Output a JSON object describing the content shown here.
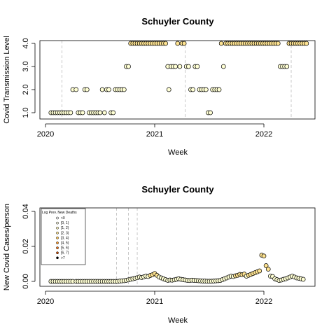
{
  "colors": {
    "fill_low": "#ffffd4",
    "fill_mid": "#fee391",
    "point_stroke": "#000000",
    "vline": "#bbbbbb"
  },
  "chart_data": [
    {
      "type": "scatter",
      "title": "Schuyler County",
      "xlabel": "Week",
      "ylabel": "Covid Transmission Level",
      "xlim": [
        2020.0,
        2022.5
      ],
      "ylim": [
        1.0,
        4.0
      ],
      "xticks": [
        2020,
        2021,
        2022
      ],
      "xtick_labels": [
        "2020",
        "2021",
        "2022"
      ],
      "yticks": [
        1,
        2,
        3,
        4
      ],
      "ytick_labels": [
        "1.0",
        "2.0",
        "3.0",
        "4.0"
      ],
      "grid": false,
      "vlines": [
        2020.15,
        2021.28,
        2022.25
      ],
      "points": [
        [
          2020.05,
          1
        ],
        [
          2020.07,
          1
        ],
        [
          2020.09,
          1
        ],
        [
          2020.11,
          1
        ],
        [
          2020.13,
          1
        ],
        [
          2020.15,
          1
        ],
        [
          2020.17,
          1
        ],
        [
          2020.19,
          1
        ],
        [
          2020.21,
          1
        ],
        [
          2020.23,
          1
        ],
        [
          2020.25,
          2
        ],
        [
          2020.28,
          2
        ],
        [
          2020.3,
          1
        ],
        [
          2020.32,
          1
        ],
        [
          2020.34,
          1
        ],
        [
          2020.36,
          2
        ],
        [
          2020.38,
          2
        ],
        [
          2020.4,
          1
        ],
        [
          2020.42,
          1
        ],
        [
          2020.44,
          1
        ],
        [
          2020.46,
          1
        ],
        [
          2020.48,
          1
        ],
        [
          2020.5,
          1
        ],
        [
          2020.52,
          2
        ],
        [
          2020.54,
          1
        ],
        [
          2020.56,
          2
        ],
        [
          2020.58,
          2
        ],
        [
          2020.6,
          1
        ],
        [
          2020.62,
          1
        ],
        [
          2020.64,
          2
        ],
        [
          2020.66,
          2
        ],
        [
          2020.68,
          2
        ],
        [
          2020.7,
          2
        ],
        [
          2020.72,
          2
        ],
        [
          2020.74,
          3
        ],
        [
          2020.76,
          3
        ],
        [
          2020.78,
          4
        ],
        [
          2020.8,
          4
        ],
        [
          2020.82,
          4
        ],
        [
          2020.84,
          4
        ],
        [
          2020.86,
          4
        ],
        [
          2020.88,
          4
        ],
        [
          2020.9,
          4
        ],
        [
          2020.92,
          4
        ],
        [
          2020.94,
          4
        ],
        [
          2020.96,
          4
        ],
        [
          2020.98,
          4
        ],
        [
          2021.0,
          4
        ],
        [
          2021.02,
          4
        ],
        [
          2021.04,
          4
        ],
        [
          2021.06,
          4
        ],
        [
          2021.08,
          4
        ],
        [
          2021.1,
          4
        ],
        [
          2021.12,
          3
        ],
        [
          2021.13,
          2
        ],
        [
          2021.15,
          3
        ],
        [
          2021.17,
          3
        ],
        [
          2021.19,
          3
        ],
        [
          2021.21,
          4
        ],
        [
          2021.23,
          3
        ],
        [
          2021.25,
          4
        ],
        [
          2021.27,
          4
        ],
        [
          2021.29,
          3
        ],
        [
          2021.31,
          3
        ],
        [
          2021.33,
          2
        ],
        [
          2021.35,
          2
        ],
        [
          2021.37,
          3
        ],
        [
          2021.39,
          3
        ],
        [
          2021.41,
          2
        ],
        [
          2021.43,
          2
        ],
        [
          2021.45,
          2
        ],
        [
          2021.47,
          2
        ],
        [
          2021.49,
          1
        ],
        [
          2021.51,
          1
        ],
        [
          2021.53,
          2
        ],
        [
          2021.55,
          2
        ],
        [
          2021.57,
          2
        ],
        [
          2021.59,
          2
        ],
        [
          2021.61,
          4
        ],
        [
          2021.63,
          3
        ],
        [
          2021.65,
          4
        ],
        [
          2021.67,
          4
        ],
        [
          2021.69,
          4
        ],
        [
          2021.71,
          4
        ],
        [
          2021.73,
          4
        ],
        [
          2021.75,
          4
        ],
        [
          2021.77,
          4
        ],
        [
          2021.79,
          4
        ],
        [
          2021.81,
          4
        ],
        [
          2021.83,
          4
        ],
        [
          2021.85,
          4
        ],
        [
          2021.87,
          4
        ],
        [
          2021.89,
          4
        ],
        [
          2021.91,
          4
        ],
        [
          2021.93,
          4
        ],
        [
          2021.95,
          4
        ],
        [
          2021.97,
          4
        ],
        [
          2021.99,
          4
        ],
        [
          2022.01,
          4
        ],
        [
          2022.03,
          4
        ],
        [
          2022.05,
          4
        ],
        [
          2022.07,
          4
        ],
        [
          2022.09,
          4
        ],
        [
          2022.11,
          4
        ],
        [
          2022.13,
          4
        ],
        [
          2022.15,
          3
        ],
        [
          2022.17,
          3
        ],
        [
          2022.19,
          3
        ],
        [
          2022.21,
          3
        ],
        [
          2022.23,
          4
        ],
        [
          2022.25,
          4
        ],
        [
          2022.27,
          4
        ],
        [
          2022.29,
          4
        ],
        [
          2022.31,
          4
        ],
        [
          2022.33,
          4
        ],
        [
          2022.35,
          4
        ],
        [
          2022.37,
          4
        ],
        [
          2022.39,
          4
        ]
      ]
    },
    {
      "type": "scatter",
      "title": "Schuyler County",
      "xlabel": "Week",
      "ylabel": "New Covid Cases/person",
      "xlim": [
        2020.0,
        2022.5
      ],
      "ylim": [
        0.0,
        0.04
      ],
      "xticks": [
        2020,
        2021,
        2022
      ],
      "xtick_labels": [
        "2020",
        "2021",
        "2022"
      ],
      "yticks": [
        0.0,
        0.02,
        0.04
      ],
      "ytick_labels": [
        "0.00",
        "0.02",
        "0.04"
      ],
      "grid": false,
      "vlines": [
        2020.65,
        2020.76,
        2020.84
      ],
      "legend": {
        "title": "Log Prev. New Deaths",
        "placement": "top-left",
        "entries": [
          "<0",
          "[0, 1)",
          "[1, 2)",
          "[2, 3)",
          "[3, 4)",
          "[4, 5)",
          "[5, 6)",
          "[6, 7)",
          ">7"
        ],
        "colors": [
          "#ffffff",
          "#ffffe5",
          "#fff7bc",
          "#fee391",
          "#fec44f",
          "#fe9929",
          "#ec7014",
          "#cc4c02",
          "#000000"
        ]
      },
      "points": [
        [
          2020.05,
          0.0
        ],
        [
          2020.07,
          0.0
        ],
        [
          2020.09,
          0.0
        ],
        [
          2020.11,
          0.0
        ],
        [
          2020.13,
          0.0
        ],
        [
          2020.15,
          0.0
        ],
        [
          2020.17,
          0.0
        ],
        [
          2020.19,
          0.0
        ],
        [
          2020.21,
          0.0
        ],
        [
          2020.23,
          0.0
        ],
        [
          2020.25,
          0.0
        ],
        [
          2020.28,
          0.0
        ],
        [
          2020.3,
          0.0
        ],
        [
          2020.32,
          0.0
        ],
        [
          2020.34,
          0.0
        ],
        [
          2020.36,
          0.0
        ],
        [
          2020.38,
          0.0
        ],
        [
          2020.4,
          0.0
        ],
        [
          2020.42,
          0.0
        ],
        [
          2020.44,
          0.0
        ],
        [
          2020.46,
          0.0
        ],
        [
          2020.48,
          0.0
        ],
        [
          2020.5,
          0.0
        ],
        [
          2020.52,
          0.0
        ],
        [
          2020.54,
          0.0
        ],
        [
          2020.56,
          0.0
        ],
        [
          2020.58,
          0.0
        ],
        [
          2020.6,
          0.0
        ],
        [
          2020.62,
          0.0
        ],
        [
          2020.64,
          0.0
        ],
        [
          2020.66,
          0.0
        ],
        [
          2020.68,
          0.0002
        ],
        [
          2020.7,
          0.0003
        ],
        [
          2020.72,
          0.0004
        ],
        [
          2020.74,
          0.0006
        ],
        [
          2020.76,
          0.0009
        ],
        [
          2020.78,
          0.0012
        ],
        [
          2020.8,
          0.0015
        ],
        [
          2020.82,
          0.0018
        ],
        [
          2020.84,
          0.0021
        ],
        [
          2020.86,
          0.0025
        ],
        [
          2020.88,
          0.0022
        ],
        [
          2020.9,
          0.0026
        ],
        [
          2020.92,
          0.003
        ],
        [
          2020.94,
          0.0028
        ],
        [
          2020.96,
          0.0034
        ],
        [
          2020.98,
          0.0038
        ],
        [
          2021.0,
          0.0045
        ],
        [
          2021.02,
          0.0035
        ],
        [
          2021.04,
          0.0025
        ],
        [
          2021.06,
          0.002
        ],
        [
          2021.08,
          0.0015
        ],
        [
          2021.1,
          0.001
        ],
        [
          2021.12,
          0.0006
        ],
        [
          2021.14,
          0.0008
        ],
        [
          2021.16,
          0.0007
        ],
        [
          2021.18,
          0.0009
        ],
        [
          2021.2,
          0.0012
        ],
        [
          2021.22,
          0.0015
        ],
        [
          2021.24,
          0.0012
        ],
        [
          2021.26,
          0.001
        ],
        [
          2021.28,
          0.0008
        ],
        [
          2021.3,
          0.0006
        ],
        [
          2021.32,
          0.0005
        ],
        [
          2021.34,
          0.0007
        ],
        [
          2021.36,
          0.0006
        ],
        [
          2021.38,
          0.0005
        ],
        [
          2021.4,
          0.0004
        ],
        [
          2021.42,
          0.0003
        ],
        [
          2021.44,
          0.0002
        ],
        [
          2021.46,
          0.0002
        ],
        [
          2021.48,
          0.0001
        ],
        [
          2021.5,
          0.0001
        ],
        [
          2021.52,
          0.0001
        ],
        [
          2021.54,
          0.0002
        ],
        [
          2021.56,
          0.0003
        ],
        [
          2021.58,
          0.0004
        ],
        [
          2021.6,
          0.0005
        ],
        [
          2021.62,
          0.001
        ],
        [
          2021.64,
          0.0015
        ],
        [
          2021.66,
          0.002
        ],
        [
          2021.68,
          0.0025
        ],
        [
          2021.7,
          0.003
        ],
        [
          2021.72,
          0.0028
        ],
        [
          2021.74,
          0.0032
        ],
        [
          2021.76,
          0.0035
        ],
        [
          2021.78,
          0.004
        ],
        [
          2021.8,
          0.0038
        ],
        [
          2021.82,
          0.0042
        ],
        [
          2021.84,
          0.003
        ],
        [
          2021.86,
          0.0035
        ],
        [
          2021.88,
          0.004
        ],
        [
          2021.9,
          0.0045
        ],
        [
          2021.92,
          0.005
        ],
        [
          2021.94,
          0.0055
        ],
        [
          2021.96,
          0.006
        ],
        [
          2021.98,
          0.015
        ],
        [
          2022.0,
          0.0145
        ],
        [
          2022.02,
          0.009
        ],
        [
          2022.04,
          0.007
        ],
        [
          2022.06,
          0.003
        ],
        [
          2022.08,
          0.0028
        ],
        [
          2022.1,
          0.0015
        ],
        [
          2022.12,
          0.001
        ],
        [
          2022.14,
          0.0005
        ],
        [
          2022.16,
          0.0008
        ],
        [
          2022.18,
          0.0012
        ],
        [
          2022.2,
          0.0015
        ],
        [
          2022.22,
          0.002
        ],
        [
          2022.24,
          0.0025
        ],
        [
          2022.26,
          0.003
        ],
        [
          2022.28,
          0.0025
        ],
        [
          2022.3,
          0.002
        ],
        [
          2022.32,
          0.0018
        ],
        [
          2022.34,
          0.0015
        ],
        [
          2022.36,
          0.0012
        ]
      ]
    }
  ]
}
